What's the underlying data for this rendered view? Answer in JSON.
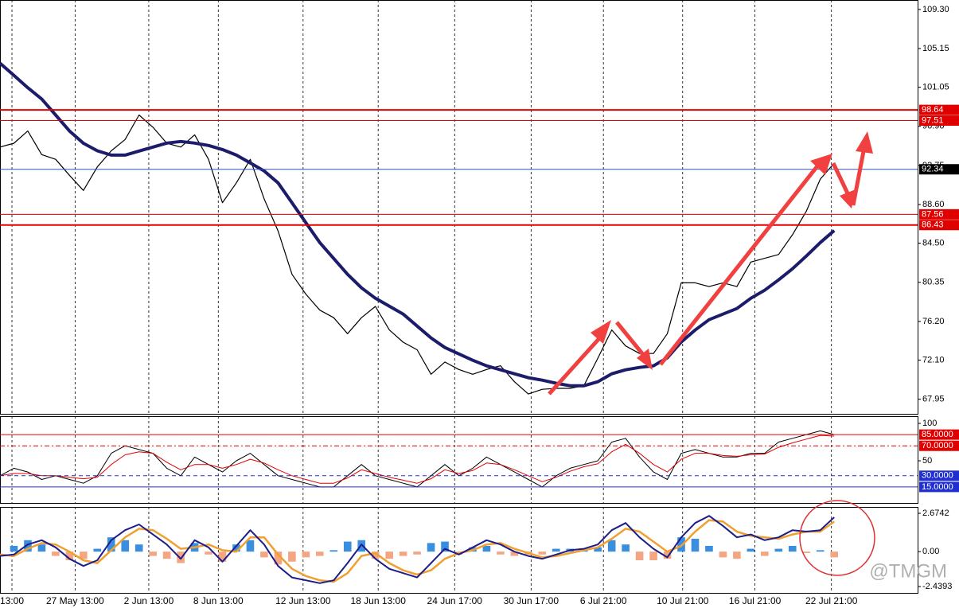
{
  "chart_data": [
    {
      "type": "line",
      "xlim": [
        0,
        66
      ],
      "ylim": [
        66.4,
        110.3
      ],
      "yticks": [
        {
          "value": 109.3,
          "label": "109.30"
        },
        105.15,
        101.05,
        {
          "value": 96.9,
          "label": "96.90"
        },
        92.75,
        {
          "value": 88.6,
          "label": "88.60"
        },
        {
          "value": 84.5,
          "label": "84.50"
        },
        80.35,
        {
          "value": 76.2,
          "label": "76.20"
        },
        {
          "value": 72.1,
          "label": "72.10"
        },
        67.95
      ],
      "hlines": [
        {
          "value": 98.64,
          "color": "#e00000",
          "box": "#e00000",
          "width": 2
        },
        {
          "value": 97.51,
          "color": "#e00000",
          "box": "#e00000",
          "width": 1
        },
        {
          "value": 92.34,
          "color": "#3050c0",
          "box": "#000000",
          "width": 1
        },
        {
          "value": 87.56,
          "color": "#e00000",
          "box": "#e00000",
          "width": 1
        },
        {
          "value": 86.43,
          "color": "#e00000",
          "box": "#e00000",
          "width": 2
        }
      ],
      "series": [
        {
          "type": "line",
          "color": "#000000",
          "width": 1.2,
          "values": [
            94.7,
            95.1,
            96.4,
            93.9,
            93.4,
            91.7,
            90.1,
            92.6,
            94.3,
            95.5,
            98.1,
            96.8,
            95.1,
            94.7,
            96.0,
            93.4,
            88.8,
            90.9,
            93.4,
            89.2,
            85.8,
            81.2,
            79.1,
            77.4,
            76.6,
            74.9,
            76.6,
            77.8,
            75.3,
            74.0,
            73.2,
            70.6,
            71.9,
            71.1,
            70.6,
            71.1,
            71.5,
            69.8,
            68.5,
            69.0,
            69.1,
            69.1,
            69.4,
            72.3,
            75.3,
            73.6,
            72.8,
            72.8,
            74.9,
            80.3,
            80.3,
            79.9,
            80.3,
            79.9,
            82.5,
            82.9,
            83.3,
            85.4,
            87.9,
            91.3,
            93.0
          ]
        },
        {
          "type": "line",
          "color": "#1c1c6a",
          "width": 4,
          "values": [
            103.6,
            102.3,
            101.0,
            99.8,
            98.1,
            96.4,
            95.1,
            94.3,
            93.85,
            93.85,
            94.28,
            94.7,
            95.12,
            95.29,
            95.12,
            94.87,
            94.44,
            93.85,
            93.01,
            92.17,
            90.9,
            88.79,
            86.68,
            84.57,
            82.88,
            81.2,
            79.76,
            78.66,
            77.82,
            76.98,
            75.71,
            74.45,
            73.43,
            72.76,
            72.08,
            71.49,
            71.07,
            70.65,
            70.23,
            69.97,
            69.64,
            69.38,
            69.38,
            69.8,
            70.65,
            71.07,
            71.32,
            71.49,
            72.34,
            74.02,
            75.29,
            76.39,
            76.98,
            77.57,
            78.66,
            79.51,
            80.61,
            81.79,
            83.14,
            84.57,
            85.84
          ]
        }
      ]
    },
    {
      "type": "line",
      "xlim": [
        0,
        66
      ],
      "ylim": [
        -6.4,
        109.6
      ],
      "yticks": [
        100,
        50
      ],
      "hlines": [
        {
          "value": 85,
          "label": "85.0000",
          "color": "#e00000",
          "box": "#e00000",
          "width": 1
        },
        {
          "value": 70,
          "label": "70.0000",
          "color": "#e00000",
          "box": "#e00000",
          "width": 1,
          "dash": "6 3 2 3"
        },
        {
          "value": 30,
          "label": "30.0000",
          "color": "#2030d0",
          "box": "#2030d0",
          "width": 1,
          "dash": "5 4"
        },
        {
          "value": 15,
          "label": "15.0000",
          "color": "#2030d0",
          "box": "#2030d0",
          "width": 1
        }
      ],
      "series": [
        {
          "type": "line",
          "color": "#000000",
          "width": 1,
          "values": [
            30,
            40,
            35,
            25,
            30,
            25,
            20,
            30,
            60,
            70,
            65,
            60,
            40,
            30,
            55,
            45,
            35,
            50,
            60,
            45,
            30,
            25,
            20,
            15,
            15,
            30,
            45,
            30,
            25,
            20,
            15,
            30,
            45,
            30,
            40,
            55,
            45,
            35,
            25,
            15,
            30,
            40,
            45,
            50,
            75,
            80,
            55,
            35,
            25,
            60,
            65,
            60,
            55,
            55,
            60,
            60,
            75,
            80,
            85,
            90,
            85
          ]
        },
        {
          "type": "line",
          "color": "#e00000",
          "width": 1,
          "values": [
            30,
            33,
            33,
            30,
            30,
            28,
            26,
            28,
            45,
            58,
            62,
            60,
            48,
            38,
            45,
            45,
            40,
            45,
            52,
            47,
            38,
            30,
            25,
            20,
            20,
            27,
            38,
            33,
            28,
            24,
            20,
            26,
            38,
            33,
            37,
            47,
            45,
            38,
            30,
            22,
            28,
            36,
            42,
            46,
            62,
            72,
            60,
            45,
            35,
            52,
            60,
            60,
            57,
            56,
            58,
            59,
            68,
            74,
            79,
            84,
            83
          ]
        }
      ]
    },
    {
      "type": "line",
      "xlim": [
        0,
        66
      ],
      "ylim": [
        -2.88,
        3.12
      ],
      "yticks": [
        2.6742,
        {
          "value": 0,
          "label": "0.00"
        },
        -2.4393
      ],
      "xticks": [
        {
          "value": 0.86,
          "label": "13:00"
        },
        {
          "value": 5.4,
          "label": "27 May 13:00"
        },
        {
          "value": 10.7,
          "label": "2 Jun 13:00"
        },
        {
          "value": 15.7,
          "label": "8 Jun 13:00"
        },
        {
          "value": 21.8,
          "label": "12 Jun 13:00"
        },
        {
          "value": 27.2,
          "label": "18 Jun 13:00"
        },
        {
          "value": 32.7,
          "label": "24 Jun 17:00"
        },
        {
          "value": 38.2,
          "label": "30 Jun 17:00"
        },
        {
          "value": 43.4,
          "label": "6 Jul 21:00"
        },
        {
          "value": 49.1,
          "label": "10 Jul 21:00"
        },
        {
          "value": 54.3,
          "label": "16 Jul 21:00"
        },
        {
          "value": 59.8,
          "label": "22 Jul 21:00"
        }
      ],
      "series": [
        {
          "type": "bar",
          "color": "#3a8ee0",
          "neg_color": "#f4a582",
          "values": [
            0,
            0.4,
            0.8,
            0.5,
            -0.3,
            -0.6,
            -0.5,
            0.2,
            1.0,
            0.8,
            0.5,
            -0.3,
            -0.5,
            -0.8,
            0.6,
            -0.2,
            -0.7,
            0.5,
            0.8,
            -0.4,
            -0.9,
            -0.7,
            -0.4,
            -0.3,
            0.1,
            0.7,
            0.8,
            -0.5,
            -0.5,
            -0.3,
            -0.2,
            0.6,
            0.7,
            -0.2,
            0.3,
            0.4,
            -0.2,
            -0.3,
            -0.2,
            -0.2,
            0.2,
            0.2,
            0.1,
            0.3,
            0.8,
            0.5,
            -0.6,
            -0.6,
            -0.5,
            1.0,
            0.9,
            0.4,
            -0.4,
            -0.5,
            0.2,
            -0.3,
            0.2,
            0.4,
            -0.1,
            0.1,
            -0.4
          ]
        },
        {
          "type": "line",
          "color": "#f0a030",
          "width": 2.5,
          "values": [
            -0.2,
            -0.3,
            0.2,
            0.6,
            0.5,
            0,
            -0.6,
            -0.8,
            0.1,
            1.0,
            1.6,
            1.5,
            0.9,
            0.2,
            0.3,
            0.5,
            0.1,
            0,
            1.0,
            1.0,
            -0.2,
            -1.2,
            -1.7,
            -2.0,
            -2.1,
            -1.5,
            -0.3,
            -0.1,
            -0.8,
            -1.3,
            -1.6,
            -1.3,
            -0.5,
            -0.1,
            0.1,
            0.5,
            0.6,
            0.2,
            -0.1,
            -0.4,
            -0.3,
            -0.1,
            0.1,
            0.3,
            0.9,
            1.6,
            1.4,
            0.7,
            0,
            0.4,
            1.4,
            2.2,
            2.1,
            1.4,
            1.1,
            1.0,
            0.9,
            1.2,
            1.4,
            1.4,
            2.1
          ]
        },
        {
          "type": "line",
          "color": "#1c1c8a",
          "width": 2,
          "values": [
            -0.3,
            -0.2,
            0.5,
            0.8,
            0.3,
            -0.5,
            -1.0,
            -0.6,
            0.8,
            1.5,
            1.9,
            1.2,
            0.5,
            -0.5,
            0.8,
            0.3,
            -0.7,
            0.4,
            1.5,
            0.5,
            -1.0,
            -1.8,
            -2.0,
            -2.2,
            -2.0,
            -0.8,
            0.5,
            -0.5,
            -1.2,
            -1.5,
            -1.8,
            -0.8,
            0.2,
            -0.2,
            0.3,
            0.8,
            0.5,
            0,
            -0.3,
            -0.5,
            -0.2,
            0.1,
            0.2,
            0.5,
            1.5,
            2.0,
            1.0,
            0.2,
            -0.4,
            1.0,
            2.0,
            2.5,
            1.8,
            1.0,
            1.2,
            0.8,
            1.0,
            1.5,
            1.4,
            1.5,
            2.4
          ]
        }
      ]
    }
  ],
  "watermark": "@TMGM"
}
